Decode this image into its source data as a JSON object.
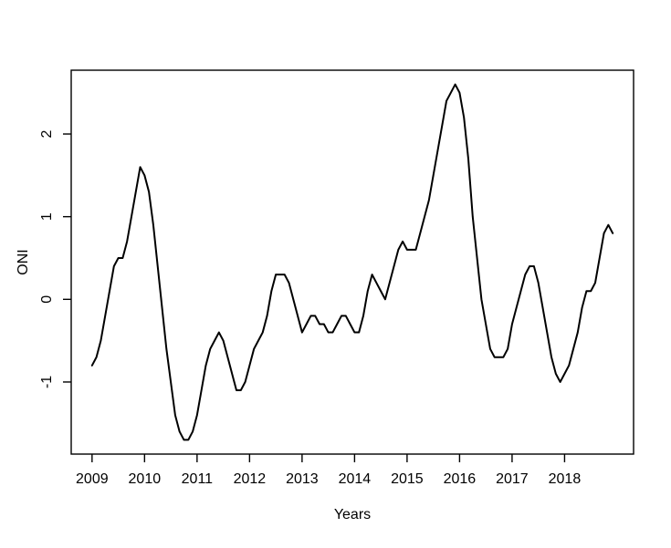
{
  "figure": {
    "background_color": "#ffffff",
    "foreground_color": "#000000"
  },
  "chart_data": {
    "type": "line",
    "title": "",
    "xlabel": "Years",
    "ylabel": "ONI",
    "grid": false,
    "legend": null,
    "xlim": [
      2008.603,
      2019.314
    ],
    "ylim": [
      -1.872,
      2.772
    ],
    "x_ticks": [
      2009,
      2010,
      2011,
      2012,
      2013,
      2014,
      2015,
      2016,
      2017,
      2018
    ],
    "x_tick_labels": [
      "2009",
      "2010",
      "2011",
      "2012",
      "2013",
      "2014",
      "2015",
      "2016",
      "2017",
      "2018"
    ],
    "y_ticks": [
      -1,
      0,
      1,
      2
    ],
    "y_tick_labels": [
      "-1",
      "0",
      "1",
      "2"
    ],
    "line_color": "#000000",
    "series": [
      {
        "name": "ONI",
        "x_start": 2009.0,
        "x_step": 0.08333333,
        "values": [
          -0.8,
          -0.7,
          -0.5,
          -0.2,
          0.1,
          0.4,
          0.5,
          0.5,
          0.7,
          1.0,
          1.3,
          1.6,
          1.5,
          1.3,
          0.9,
          0.4,
          -0.1,
          -0.6,
          -1.0,
          -1.4,
          -1.6,
          -1.7,
          -1.7,
          -1.6,
          -1.4,
          -1.1,
          -0.8,
          -0.6,
          -0.5,
          -0.4,
          -0.5,
          -0.7,
          -0.9,
          -1.1,
          -1.1,
          -1.0,
          -0.8,
          -0.6,
          -0.5,
          -0.4,
          -0.2,
          0.1,
          0.3,
          0.3,
          0.3,
          0.2,
          0.0,
          -0.2,
          -0.4,
          -0.3,
          -0.2,
          -0.2,
          -0.3,
          -0.3,
          -0.4,
          -0.4,
          -0.3,
          -0.2,
          -0.2,
          -0.3,
          -0.4,
          -0.4,
          -0.2,
          0.1,
          0.3,
          0.2,
          0.1,
          0.0,
          0.2,
          0.4,
          0.6,
          0.7,
          0.6,
          0.6,
          0.6,
          0.8,
          1.0,
          1.2,
          1.5,
          1.8,
          2.1,
          2.4,
          2.5,
          2.6,
          2.5,
          2.2,
          1.7,
          1.0,
          0.5,
          0.0,
          -0.3,
          -0.6,
          -0.7,
          -0.7,
          -0.7,
          -0.6,
          -0.3,
          -0.1,
          0.1,
          0.3,
          0.4,
          0.4,
          0.2,
          -0.1,
          -0.4,
          -0.7,
          -0.9,
          -1.0,
          -0.9,
          -0.8,
          -0.6,
          -0.4,
          -0.1,
          0.1,
          0.1,
          0.2,
          0.5,
          0.8,
          0.9,
          0.8
        ]
      }
    ]
  }
}
